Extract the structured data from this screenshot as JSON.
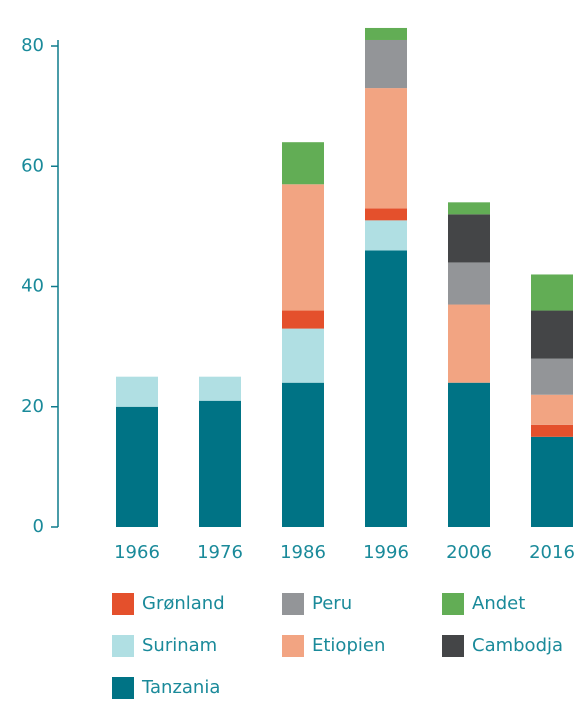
{
  "chart_data": {
    "type": "stacked_bar",
    "categories": [
      "1966",
      "1976",
      "1986",
      "1996",
      "2006",
      "2016"
    ],
    "series": [
      {
        "name": "Tanzania",
        "color": "#007385",
        "values": [
          20,
          21,
          24,
          46,
          24,
          15
        ]
      },
      {
        "name": "Surinam",
        "color": "#b0dfe3",
        "values": [
          5,
          4,
          9,
          5,
          0,
          0
        ]
      },
      {
        "name": "Grønland",
        "color": "#e4502c",
        "values": [
          0,
          0,
          3,
          2,
          0,
          2
        ]
      },
      {
        "name": "Etiopien",
        "color": "#f2a482",
        "values": [
          0,
          0,
          21,
          20,
          13,
          5
        ]
      },
      {
        "name": "Peru",
        "color": "#939598",
        "values": [
          0,
          0,
          0,
          8,
          7,
          6
        ]
      },
      {
        "name": "Cambodja",
        "color": "#444547",
        "values": [
          0,
          0,
          0,
          0,
          8,
          8
        ]
      },
      {
        "name": "Andet",
        "color": "#62ad55",
        "values": [
          0,
          0,
          7,
          2,
          2,
          6
        ]
      }
    ],
    "ylim": [
      0,
      80
    ],
    "yticks": [
      0,
      20,
      40,
      60,
      80
    ]
  }
}
